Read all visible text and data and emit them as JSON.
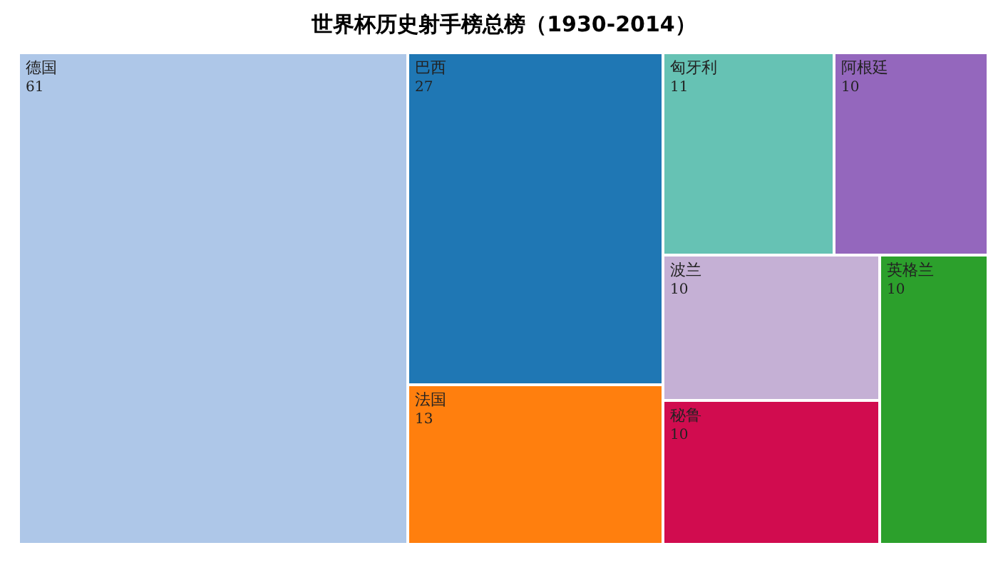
{
  "chart_data": {
    "type": "other",
    "title": "世界杯历史射手榜总榜（1930-2014）",
    "categories": [
      "德国",
      "巴西",
      "法国",
      "匈牙利",
      "阿根廷",
      "波兰",
      "秘鲁",
      "英格兰"
    ],
    "values": [
      61,
      27,
      13,
      11,
      10,
      10,
      10,
      10
    ],
    "colors": [
      "#aec7e8",
      "#1f77b4",
      "#ff7f0e",
      "#66c2b4",
      "#9467bd",
      "#c5b0d5",
      "#d10c4f",
      "#2ca02c"
    ],
    "data_labels": true
  }
}
